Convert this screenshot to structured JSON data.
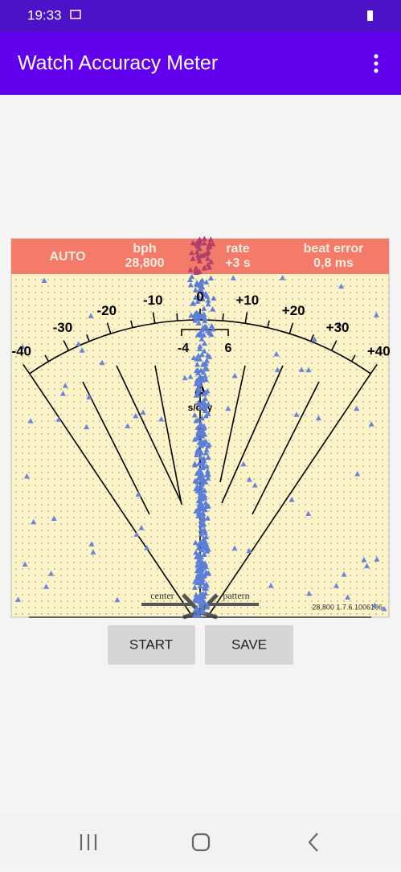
{
  "status_bar": {
    "time": "19:33"
  },
  "app_bar": {
    "title": "Watch Accuracy Meter"
  },
  "meter": {
    "mode": "AUTO",
    "bph_label": "bph",
    "bph": "28,800",
    "rate_label": "rate",
    "rate": "+3 s",
    "beat_error_label": "beat error",
    "beat_error": "0,8 ms",
    "scale_labels": [
      "-40",
      "-30",
      "-20",
      "-10",
      "0",
      "+10",
      "+20",
      "+30",
      "+40"
    ],
    "inner_scale_labels": [
      "-4",
      "6"
    ],
    "delta": "Δ",
    "unit": "s/day",
    "center_label": "center",
    "pattern_label": "pattern",
    "version": "28,800 1.7.6.1006106"
  },
  "buttons": [
    "START",
    "SAVE"
  ]
}
